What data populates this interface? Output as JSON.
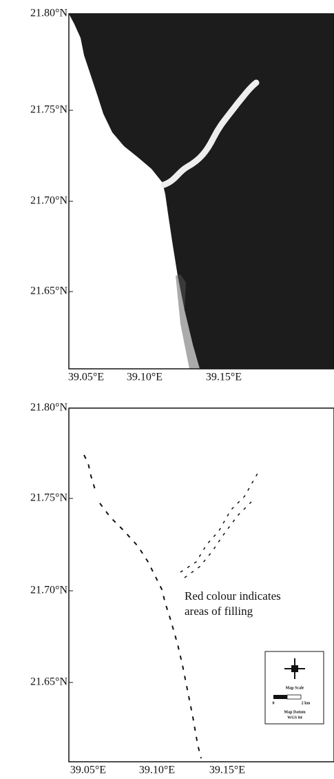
{
  "panels": [
    {
      "yticks": [
        "21.80°N",
        "21.75°N",
        "21.70°N",
        "21.65°N"
      ],
      "xticks": [
        "39.05°E",
        "39.10°E",
        "39.15°E"
      ]
    },
    {
      "yticks": [
        "21.80°N",
        "21.75°N",
        "21.70°N",
        "21.65°N"
      ],
      "xticks": [
        "39.05°E",
        "39.10°E",
        "39.15°E"
      ],
      "annotation": [
        "Red colour indicates",
        "areas of filling"
      ],
      "legend": {
        "scale_title": "Map Scale",
        "scale_labels": [
          "0",
          "2 km"
        ],
        "datum_title": "Map Datum",
        "datum_value": "WGS 84"
      }
    }
  ]
}
